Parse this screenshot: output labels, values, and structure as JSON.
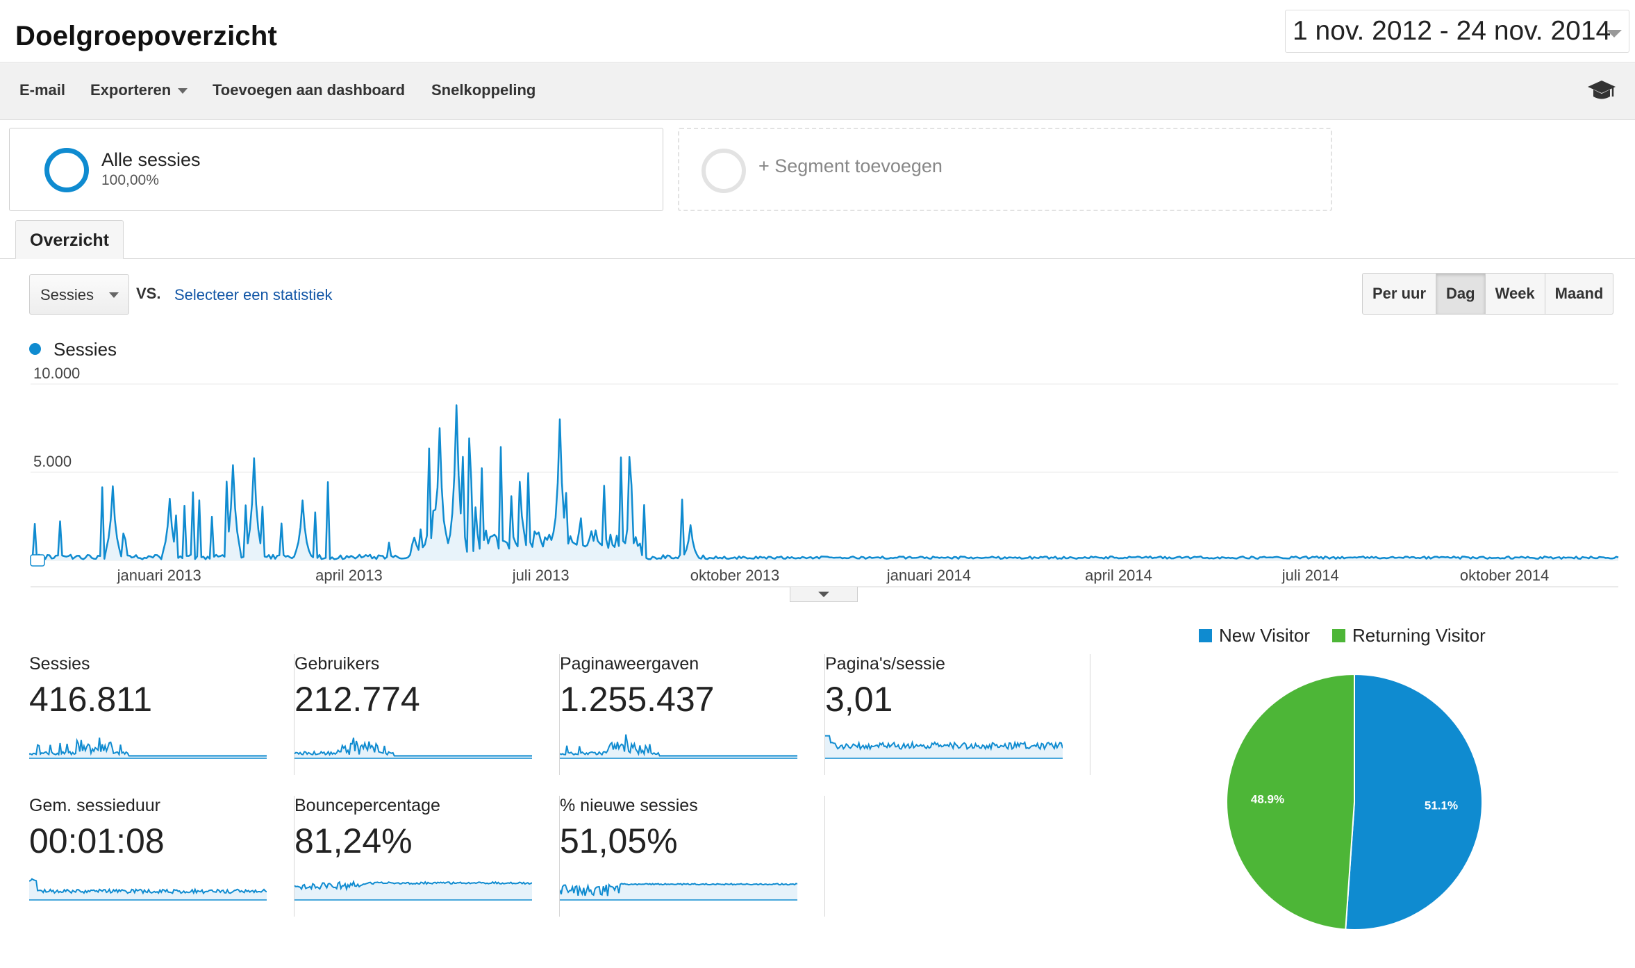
{
  "header": {
    "title": "Doelgroepoverzicht",
    "date_range": "1 nov. 2012 - 24 nov. 2014"
  },
  "toolbar": {
    "email": "E-mail",
    "export": "Exporteren",
    "add_dashboard": "Toevoegen aan dashboard",
    "shortcut": "Snelkoppeling",
    "icon": "graduation-cap-icon"
  },
  "segments": {
    "all_sessions": {
      "name": "Alle sessies",
      "percent": "100,00%"
    },
    "add_segment": "+ Segment toevoegen"
  },
  "tabs": [
    {
      "label": "Overzicht",
      "active": true
    }
  ],
  "controls": {
    "metric": "Sessies",
    "vs": "VS.",
    "select_stat": "Selecteer een statistiek",
    "granularity": [
      {
        "label": "Per uur",
        "active": false
      },
      {
        "label": "Dag",
        "active": true
      },
      {
        "label": "Week",
        "active": false
      },
      {
        "label": "Maand",
        "active": false
      }
    ]
  },
  "chart_data": [
    {
      "type": "area",
      "series": [
        {
          "name": "Sessies",
          "color": "#0f8bd0"
        }
      ],
      "y_ticks": [
        "10.000",
        "5.000"
      ],
      "ylim": [
        0,
        10000
      ],
      "x_ticks": [
        "januari 2013",
        "april 2013",
        "juli 2013",
        "oktober 2013",
        "januari 2014",
        "april 2014",
        "juli 2014",
        "oktober 2014"
      ],
      "x_range": [
        "2012-11-01",
        "2014-11-24"
      ],
      "peaks_approx": [
        {
          "date": "2012-12-10",
          "value": 4200
        },
        {
          "date": "2013-01-06",
          "value": 3500
        },
        {
          "date": "2013-02-05",
          "value": 5400
        },
        {
          "date": "2013-02-15",
          "value": 5800
        },
        {
          "date": "2013-03-10",
          "value": 3400
        },
        {
          "date": "2013-05-14",
          "value": 7500
        },
        {
          "date": "2013-05-22",
          "value": 8800
        },
        {
          "date": "2013-07-10",
          "value": 8000
        },
        {
          "date": "2013-08-12",
          "value": 3200
        },
        {
          "date": "2013-09-10",
          "value": 2000
        }
      ],
      "baseline_after_oct_2013": 150
    },
    {
      "type": "pie",
      "categories": [
        "New Visitor",
        "Returning Visitor"
      ],
      "values": [
        51.1,
        48.9
      ],
      "labels": [
        "51.1%",
        "48.9%"
      ],
      "colors": [
        "#0f8bd0",
        "#4db637"
      ]
    }
  ],
  "stats": [
    {
      "label": "Sessies",
      "value": "416.811"
    },
    {
      "label": "Gebruikers",
      "value": "212.774"
    },
    {
      "label": "Paginaweergaven",
      "value": "1.255.437"
    },
    {
      "label": "Pagina's/sessie",
      "value": "3,01"
    },
    {
      "label": "Gem. sessieduur",
      "value": "00:01:08"
    },
    {
      "label": "Bouncepercentage",
      "value": "81,24%"
    },
    {
      "label": "% nieuwe sessies",
      "value": "51,05%"
    }
  ]
}
